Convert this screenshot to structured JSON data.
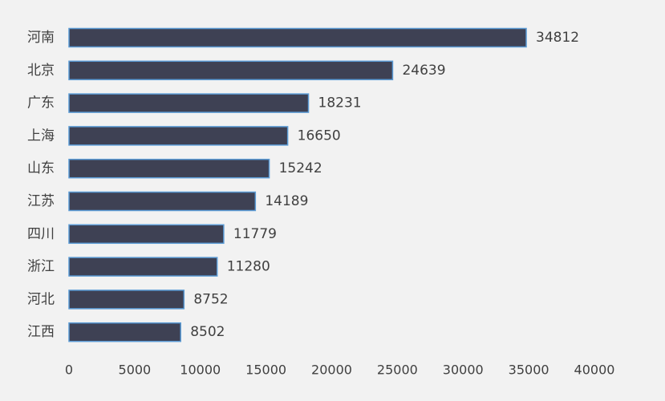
{
  "chart_data": {
    "type": "bar",
    "orientation": "horizontal",
    "categories": [
      "河南",
      "北京",
      "广东",
      "上海",
      "山东",
      "江苏",
      "四川",
      "浙江",
      "河北",
      "江西"
    ],
    "values": [
      34812,
      24639,
      18231,
      16650,
      15242,
      14189,
      11779,
      11280,
      8752,
      8502
    ],
    "value_labels": [
      "34812",
      "24639",
      "18231",
      "16650",
      "15242",
      "14189",
      "11779",
      "11280",
      "8752",
      "8502"
    ],
    "xlim": [
      0,
      40000
    ],
    "x_ticks": [
      0,
      5000,
      10000,
      15000,
      20000,
      25000,
      30000,
      35000,
      40000
    ],
    "x_tick_labels": [
      "0",
      "5000",
      "10000",
      "15000",
      "20000",
      "25000",
      "30000",
      "35000",
      "40000"
    ],
    "grid": false,
    "legend": "none",
    "title": "",
    "xlabel": "",
    "ylabel": "",
    "colors": {
      "bar_fill": "#3e4154",
      "bar_stroke": "#5b9bd5",
      "background": "#f2f2f2",
      "text": "#404040"
    }
  }
}
